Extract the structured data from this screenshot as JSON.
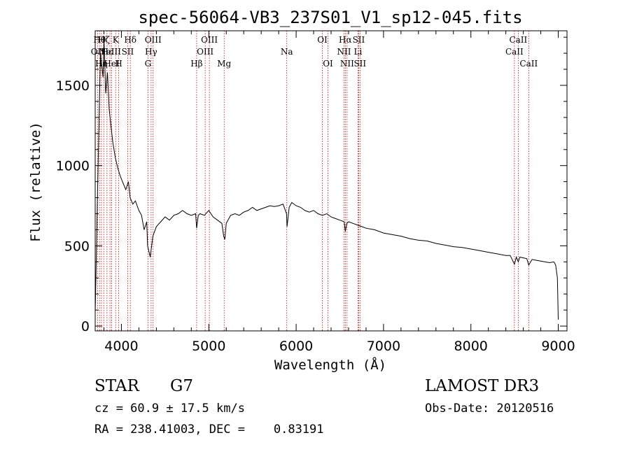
{
  "chart_data": {
    "type": "line",
    "title": "spec-56064-VB3_237S01_V1_sp12-045.fits",
    "xlabel": "Wavelength (Å)",
    "ylabel": "Flux (relative)",
    "xlim": [
      3700,
      9100
    ],
    "ylim": [
      -30,
      1840
    ],
    "x_ticks": [
      4000,
      5000,
      6000,
      7000,
      8000,
      9000
    ],
    "y_ticks": [
      0,
      500,
      1000,
      1500
    ],
    "grid": false,
    "series": [
      {
        "name": "spectrum",
        "x": [
          3700,
          3730,
          3760,
          3790,
          3800,
          3820,
          3840,
          3860,
          3880,
          3900,
          3930,
          3960,
          3990,
          4020,
          4050,
          4080,
          4100,
          4130,
          4160,
          4200,
          4230,
          4260,
          4290,
          4300,
          4330,
          4360,
          4400,
          4450,
          4500,
          4550,
          4600,
          4650,
          4700,
          4750,
          4800,
          4850,
          4861,
          4880,
          4900,
          4950,
          5000,
          5050,
          5100,
          5150,
          5170,
          5184,
          5200,
          5250,
          5300,
          5350,
          5400,
          5450,
          5500,
          5550,
          5600,
          5650,
          5700,
          5750,
          5800,
          5850,
          5890,
          5896,
          5920,
          5950,
          6000,
          6050,
          6100,
          6150,
          6200,
          6250,
          6300,
          6350,
          6400,
          6450,
          6500,
          6550,
          6563,
          6580,
          6600,
          6650,
          6700,
          6750,
          6800,
          6900,
          7000,
          7100,
          7200,
          7300,
          7400,
          7500,
          7600,
          7700,
          7800,
          7900,
          8000,
          8100,
          8200,
          8300,
          8400,
          8450,
          8498,
          8520,
          8542,
          8560,
          8600,
          8640,
          8662,
          8700,
          8750,
          8800,
          8850,
          8900,
          8950,
          8970,
          8990,
          9000
        ],
        "y": [
          80,
          900,
          1700,
          1550,
          1800,
          1450,
          1580,
          1350,
          1250,
          1150,
          1050,
          980,
          930,
          890,
          850,
          900,
          800,
          760,
          780,
          720,
          690,
          600,
          650,
          500,
          430,
          560,
          620,
          650,
          680,
          660,
          690,
          700,
          720,
          700,
          690,
          700,
          610,
          690,
          700,
          690,
          720,
          680,
          660,
          640,
          560,
          540,
          640,
          690,
          700,
          690,
          710,
          720,
          740,
          720,
          730,
          740,
          750,
          745,
          750,
          760,
          700,
          620,
          740,
          770,
          750,
          740,
          720,
          710,
          720,
          700,
          690,
          700,
          680,
          670,
          660,
          650,
          590,
          640,
          650,
          640,
          630,
          620,
          610,
          600,
          580,
          570,
          560,
          545,
          535,
          530,
          515,
          505,
          495,
          490,
          480,
          470,
          460,
          450,
          440,
          440,
          385,
          430,
          400,
          430,
          425,
          420,
          380,
          415,
          410,
          405,
          400,
          395,
          400,
          380,
          300,
          40
        ]
      }
    ],
    "lines": [
      {
        "x": 3727,
        "label": "OII",
        "row": 1
      },
      {
        "x": 3750,
        "label": "Hθ",
        "row": 0
      },
      {
        "x": 3771,
        "label": "Hη",
        "row": 2
      },
      {
        "x": 3798,
        "label": "Hζ",
        "row": 0
      },
      {
        "x": 3835,
        "label": "Hε",
        "row": 1
      },
      {
        "x": 3869,
        "label": "NeIII",
        "row": 1
      },
      {
        "x": 3889,
        "label": "HeI",
        "row": 2
      },
      {
        "x": 3934,
        "label": "K",
        "row": 0
      },
      {
        "x": 3969,
        "label": "H",
        "row": 2
      },
      {
        "x": 4072,
        "label": "SII",
        "row": 1
      },
      {
        "x": 4102,
        "label": "Hδ",
        "row": 0
      },
      {
        "x": 4304,
        "label": "G",
        "row": 2
      },
      {
        "x": 4340,
        "label": "Hγ",
        "row": 1
      },
      {
        "x": 4363,
        "label": "OIII",
        "row": 0
      },
      {
        "x": 4861,
        "label": "Hβ",
        "row": 2
      },
      {
        "x": 4959,
        "label": "OIII",
        "row": 1
      },
      {
        "x": 5007,
        "label": "OIII",
        "row": 0
      },
      {
        "x": 5176,
        "label": "Mg",
        "row": 2
      },
      {
        "x": 5893,
        "label": "Na",
        "row": 1
      },
      {
        "x": 6300,
        "label": "OI",
        "row": 0
      },
      {
        "x": 6364,
        "label": "OI",
        "row": 2
      },
      {
        "x": 6548,
        "label": "NII",
        "row": 1
      },
      {
        "x": 6563,
        "label": "Hα",
        "row": 0
      },
      {
        "x": 6583,
        "label": "NII",
        "row": 2
      },
      {
        "x": 6708,
        "label": "Li",
        "row": 1
      },
      {
        "x": 6716,
        "label": "SII",
        "row": 0
      },
      {
        "x": 6731,
        "label": "SII",
        "row": 2
      },
      {
        "x": 8498,
        "label": "CaII",
        "row": 1
      },
      {
        "x": 8542,
        "label": "CaII",
        "row": 0
      },
      {
        "x": 8662,
        "label": "CaII",
        "row": 2
      }
    ],
    "line_color": "#cc0000"
  },
  "info": {
    "class": "STAR",
    "subclass": "G7",
    "survey": "LAMOST DR3",
    "cz": "cz = 60.9 ± 17.5 km/s",
    "obs_date": "Obs-Date: 20120516",
    "radec": "RA = 238.41003, DEC =    0.83191"
  }
}
